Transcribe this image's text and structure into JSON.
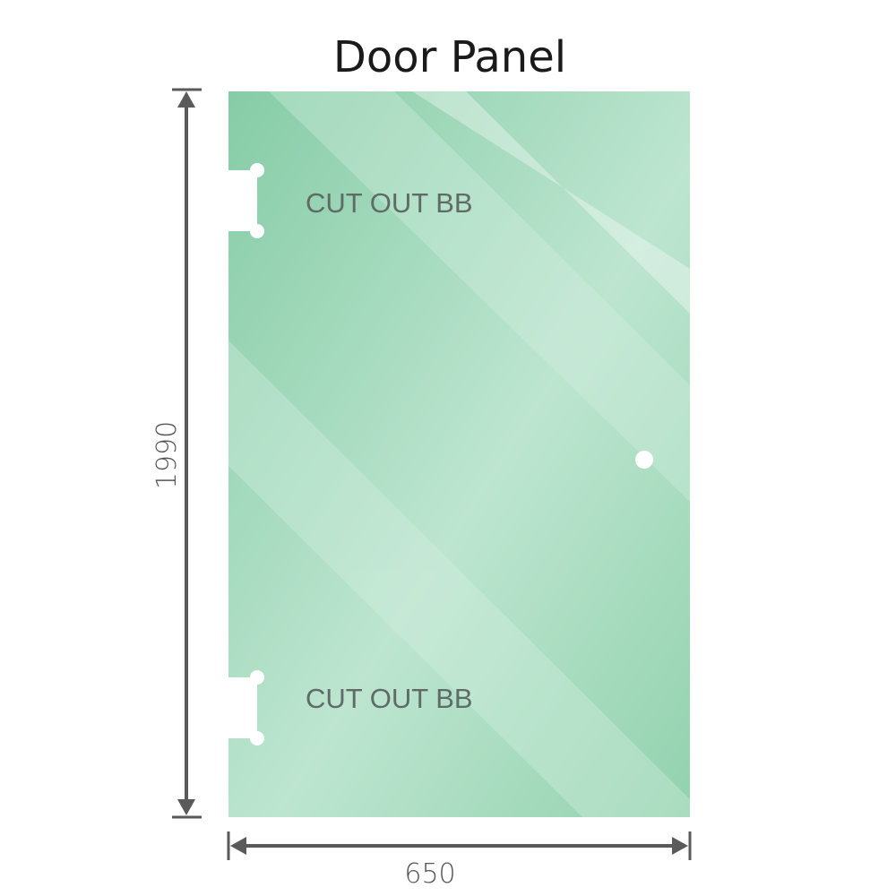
{
  "title": "Door Panel",
  "cutouts": [
    {
      "label": "CUT OUT BB"
    },
    {
      "label": "CUT OUT BB"
    }
  ],
  "dimensions": {
    "height": "1990",
    "width": "650"
  },
  "colors": {
    "glass": "#8fd0ad",
    "glass_light": "#bfe6d2",
    "dimension_line": "#5a5a5a"
  }
}
